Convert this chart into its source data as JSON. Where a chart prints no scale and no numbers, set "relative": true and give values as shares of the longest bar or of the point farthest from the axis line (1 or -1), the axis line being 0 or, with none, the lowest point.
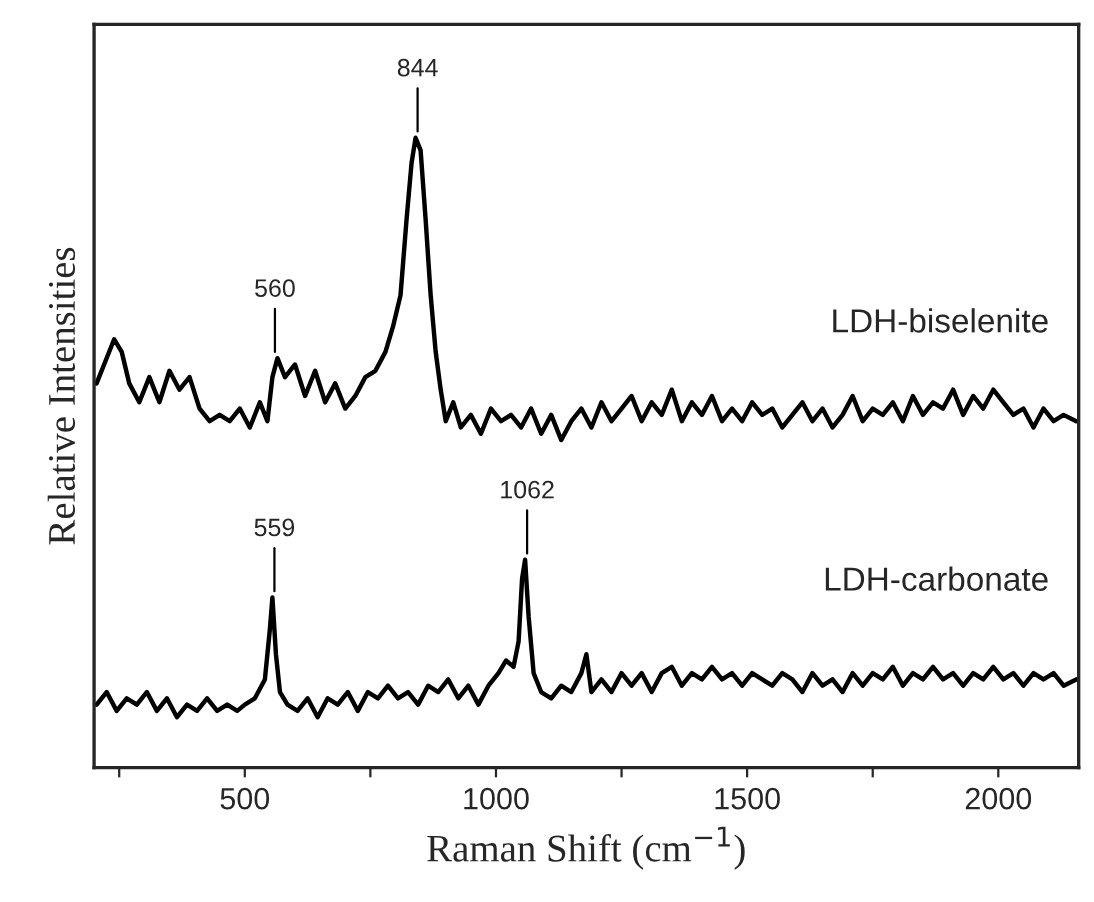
{
  "chart_data": {
    "type": "line",
    "relative": true,
    "xlabel": "Raman Shift (cm$^{−1}$)",
    "ylabel": "Relative Intensities",
    "xlim": [
      200,
      2160
    ],
    "xticks": [
      {
        "value": 250,
        "label": null
      },
      500,
      {
        "value": 750,
        "label": null
      },
      1000,
      {
        "value": 1250,
        "label": null
      },
      1500,
      {
        "value": 1750,
        "label": null
      },
      2000
    ],
    "grid": false,
    "legend": false,
    "marker": "none",
    "line_style": "solid",
    "series": [
      {
        "name": "LDH-biselenite",
        "color": "#000000",
        "x": [
          205,
          220,
          240,
          255,
          270,
          290,
          310,
          330,
          350,
          370,
          390,
          410,
          430,
          450,
          470,
          490,
          510,
          530,
          545,
          555,
          565,
          580,
          600,
          620,
          640,
          660,
          680,
          700,
          720,
          740,
          760,
          780,
          795,
          810,
          822,
          832,
          840,
          850,
          860,
          870,
          880,
          890,
          900,
          915,
          930,
          950,
          970,
          990,
          1010,
          1030,
          1050,
          1070,
          1090,
          1110,
          1130,
          1150,
          1170,
          1190,
          1210,
          1230,
          1250,
          1270,
          1290,
          1310,
          1330,
          1350,
          1370,
          1390,
          1410,
          1430,
          1450,
          1470,
          1490,
          1510,
          1530,
          1550,
          1570,
          1590,
          1610,
          1630,
          1650,
          1670,
          1690,
          1710,
          1730,
          1750,
          1770,
          1790,
          1810,
          1830,
          1850,
          1870,
          1890,
          1910,
          1930,
          1950,
          1970,
          1990,
          2010,
          2030,
          2050,
          2070,
          2090,
          2110,
          2130,
          2155
        ],
        "values": [
          0.61,
          0.64,
          0.68,
          0.66,
          0.61,
          0.58,
          0.62,
          0.58,
          0.63,
          0.6,
          0.62,
          0.57,
          0.55,
          0.56,
          0.55,
          0.57,
          0.54,
          0.58,
          0.55,
          0.62,
          0.65,
          0.62,
          0.64,
          0.59,
          0.63,
          0.58,
          0.61,
          0.57,
          0.59,
          0.62,
          0.63,
          0.66,
          0.7,
          0.75,
          0.87,
          0.96,
          1.0,
          0.98,
          0.87,
          0.75,
          0.66,
          0.6,
          0.55,
          0.58,
          0.54,
          0.56,
          0.53,
          0.57,
          0.55,
          0.56,
          0.54,
          0.57,
          0.53,
          0.56,
          0.52,
          0.55,
          0.57,
          0.54,
          0.58,
          0.55,
          0.57,
          0.59,
          0.55,
          0.58,
          0.56,
          0.6,
          0.55,
          0.58,
          0.56,
          0.59,
          0.55,
          0.57,
          0.55,
          0.58,
          0.56,
          0.57,
          0.54,
          0.56,
          0.58,
          0.55,
          0.57,
          0.54,
          0.56,
          0.59,
          0.55,
          0.57,
          0.56,
          0.58,
          0.55,
          0.59,
          0.56,
          0.58,
          0.57,
          0.6,
          0.56,
          0.59,
          0.57,
          0.6,
          0.58,
          0.56,
          0.57,
          0.54,
          0.57,
          0.55,
          0.56,
          0.55
        ]
      },
      {
        "name": "LDH-carbonate",
        "color": "#000000",
        "x": [
          205,
          225,
          245,
          265,
          285,
          305,
          325,
          345,
          365,
          385,
          405,
          425,
          445,
          465,
          485,
          500,
          520,
          540,
          550,
          555,
          562,
          570,
          585,
          605,
          625,
          645,
          665,
          685,
          705,
          725,
          745,
          765,
          785,
          805,
          825,
          845,
          865,
          885,
          905,
          925,
          945,
          965,
          985,
          1005,
          1020,
          1035,
          1045,
          1052,
          1058,
          1065,
          1075,
          1090,
          1110,
          1130,
          1150,
          1170,
          1180,
          1190,
          1210,
          1230,
          1250,
          1270,
          1290,
          1310,
          1330,
          1350,
          1370,
          1390,
          1410,
          1430,
          1450,
          1470,
          1490,
          1510,
          1530,
          1550,
          1570,
          1590,
          1610,
          1630,
          1650,
          1670,
          1690,
          1710,
          1730,
          1750,
          1770,
          1790,
          1810,
          1830,
          1850,
          1870,
          1890,
          1910,
          1930,
          1950,
          1970,
          1990,
          2010,
          2030,
          2050,
          2070,
          2090,
          2110,
          2130,
          2155
        ],
        "values": [
          0.1,
          0.12,
          0.09,
          0.11,
          0.1,
          0.12,
          0.09,
          0.11,
          0.08,
          0.1,
          0.09,
          0.11,
          0.09,
          0.1,
          0.09,
          0.1,
          0.11,
          0.14,
          0.22,
          0.27,
          0.18,
          0.12,
          0.1,
          0.09,
          0.11,
          0.08,
          0.11,
          0.1,
          0.12,
          0.09,
          0.12,
          0.11,
          0.13,
          0.11,
          0.12,
          0.1,
          0.13,
          0.12,
          0.14,
          0.11,
          0.13,
          0.1,
          0.13,
          0.15,
          0.17,
          0.16,
          0.2,
          0.3,
          0.33,
          0.24,
          0.15,
          0.12,
          0.11,
          0.13,
          0.12,
          0.15,
          0.18,
          0.12,
          0.14,
          0.12,
          0.15,
          0.13,
          0.15,
          0.12,
          0.15,
          0.16,
          0.13,
          0.15,
          0.14,
          0.16,
          0.14,
          0.15,
          0.13,
          0.15,
          0.14,
          0.13,
          0.15,
          0.14,
          0.12,
          0.15,
          0.13,
          0.14,
          0.12,
          0.15,
          0.13,
          0.15,
          0.14,
          0.16,
          0.13,
          0.15,
          0.14,
          0.16,
          0.14,
          0.15,
          0.13,
          0.15,
          0.14,
          0.16,
          0.14,
          0.15,
          0.13,
          0.15,
          0.14,
          0.15,
          0.13,
          0.14
        ]
      }
    ],
    "annotations": [
      {
        "text": "560",
        "x": 560,
        "y": 0.65
      },
      {
        "text": "844",
        "x": 844,
        "y": 1.0
      },
      {
        "text": "559",
        "x": 559,
        "y": 0.27
      },
      {
        "text": "1062",
        "x": 1062,
        "y": 0.33
      }
    ]
  }
}
